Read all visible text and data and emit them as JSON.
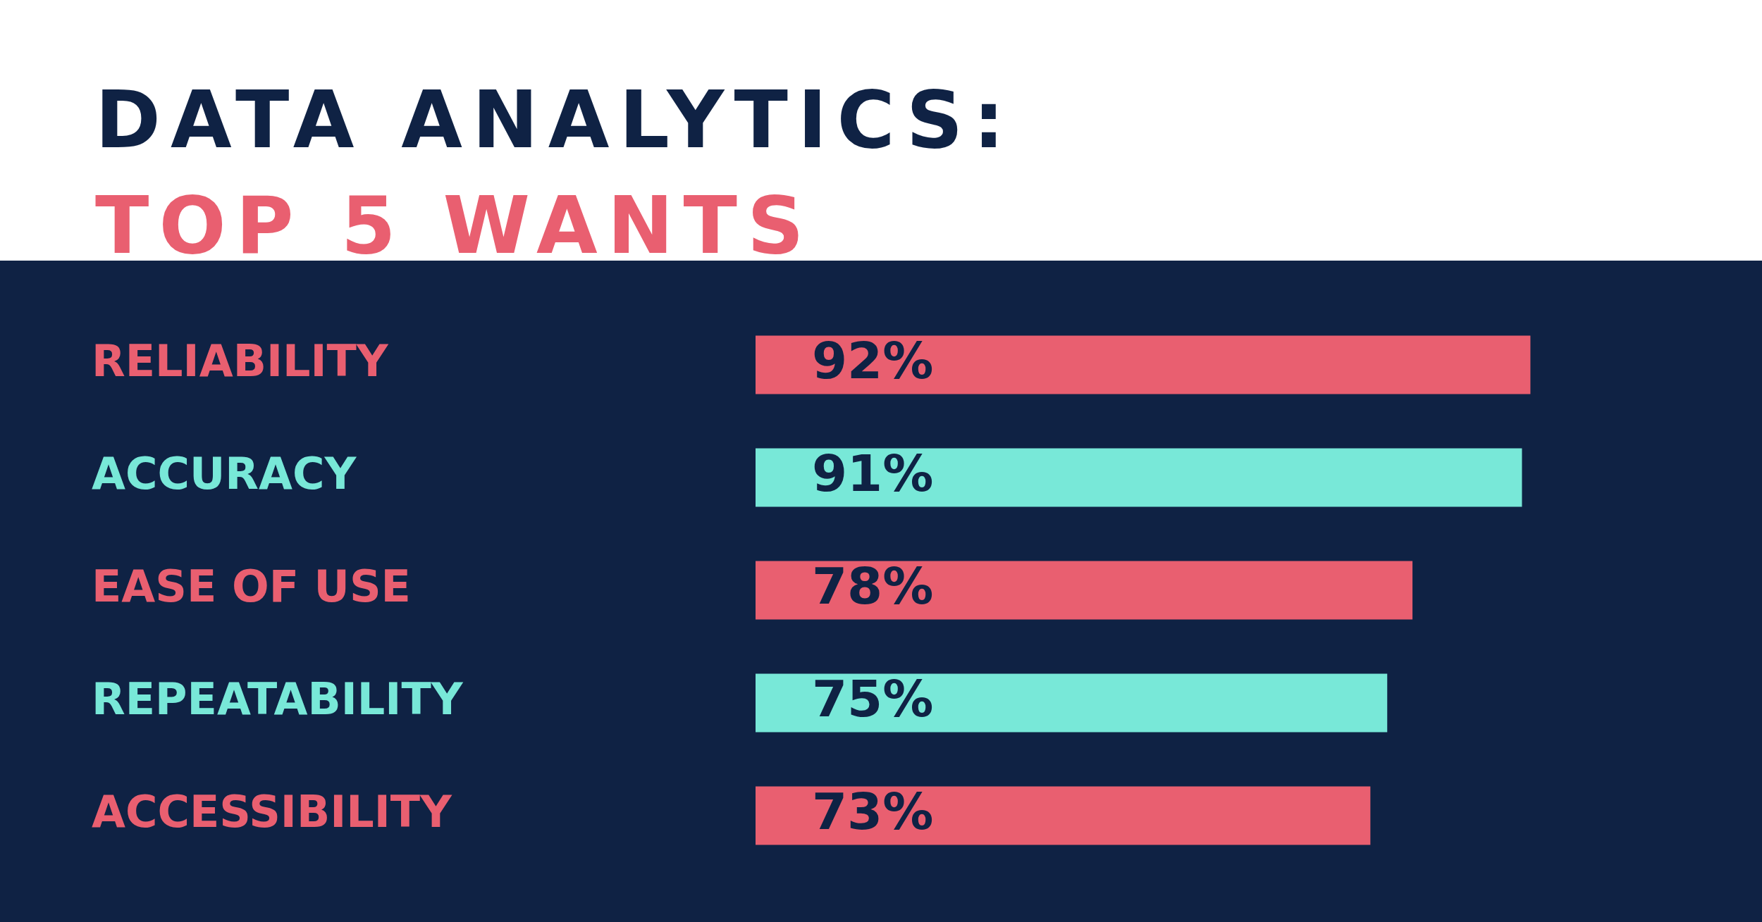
{
  "chart_data": {
    "type": "bar",
    "orientation": "horizontal",
    "title": "DATA ANALYTICS:",
    "subtitle": "TOP 5 WANTS",
    "categories": [
      "RELIABILITY",
      "ACCURACY",
      "EASE OF USE",
      "REPEATABILITY",
      "ACCESSIBILITY"
    ],
    "values": [
      92,
      91,
      78,
      75,
      73
    ],
    "value_labels": [
      "92%",
      "91%",
      "78%",
      "75%",
      "73%"
    ],
    "colors": [
      "#e95f70",
      "#78e8d8",
      "#e95f70",
      "#78e8d8",
      "#e95f70"
    ],
    "tick_labels": "y",
    "legend": false
  }
}
